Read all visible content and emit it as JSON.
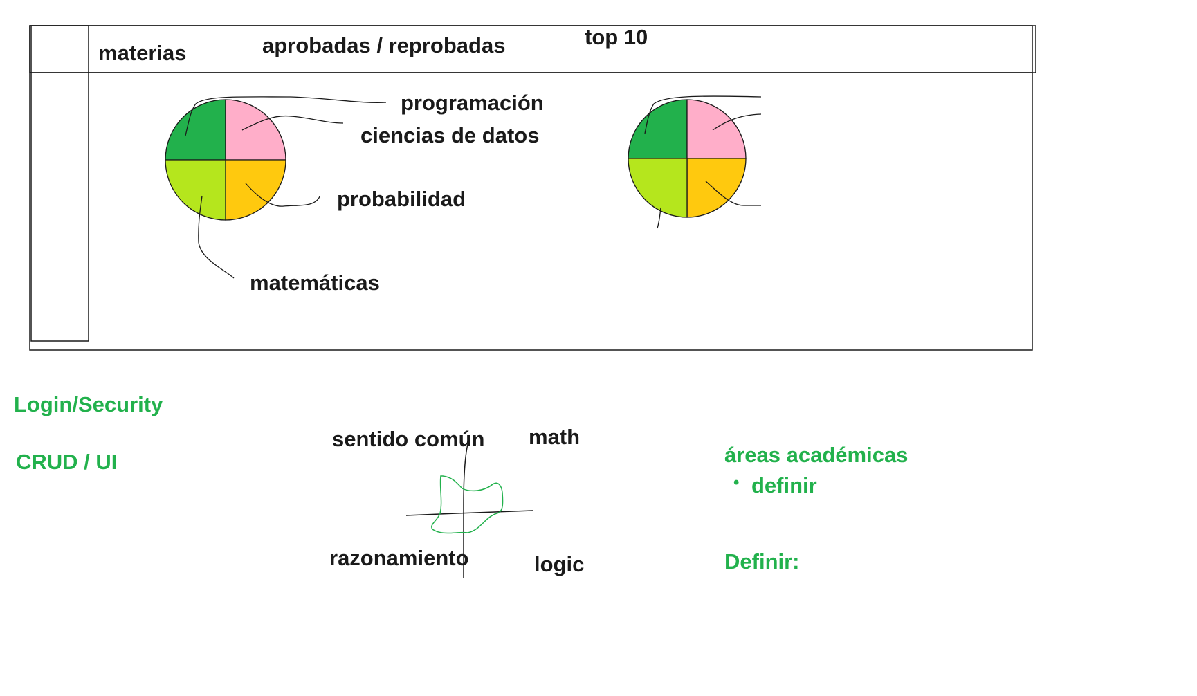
{
  "header": {
    "materias": "materias",
    "aprobadas": "aprobadas / reprobadas",
    "top10": "top 10"
  },
  "chart_data": {
    "type": "pie",
    "categories": [
      "programación",
      "ciencias de datos",
      "probabilidad",
      "matemáticas"
    ],
    "values": [
      25,
      25,
      25,
      25
    ],
    "colors": [
      "#22b14c",
      "#ffaec9",
      "#ffc90e",
      "#b5e61d"
    ]
  },
  "notes": {
    "login": "Login/Security",
    "crud": "CRUD / UI"
  },
  "quadrant": {
    "top_left": "sentido común",
    "top_right": "math",
    "bottom_left": "razonamiento",
    "bottom_right": "logic"
  },
  "areas": {
    "title": "áreas académicas",
    "bullet": "•",
    "item": "definir",
    "definir": "Definir:"
  },
  "colors": {
    "accent_green": "#22b14c",
    "ink": "#1a1a1a"
  }
}
